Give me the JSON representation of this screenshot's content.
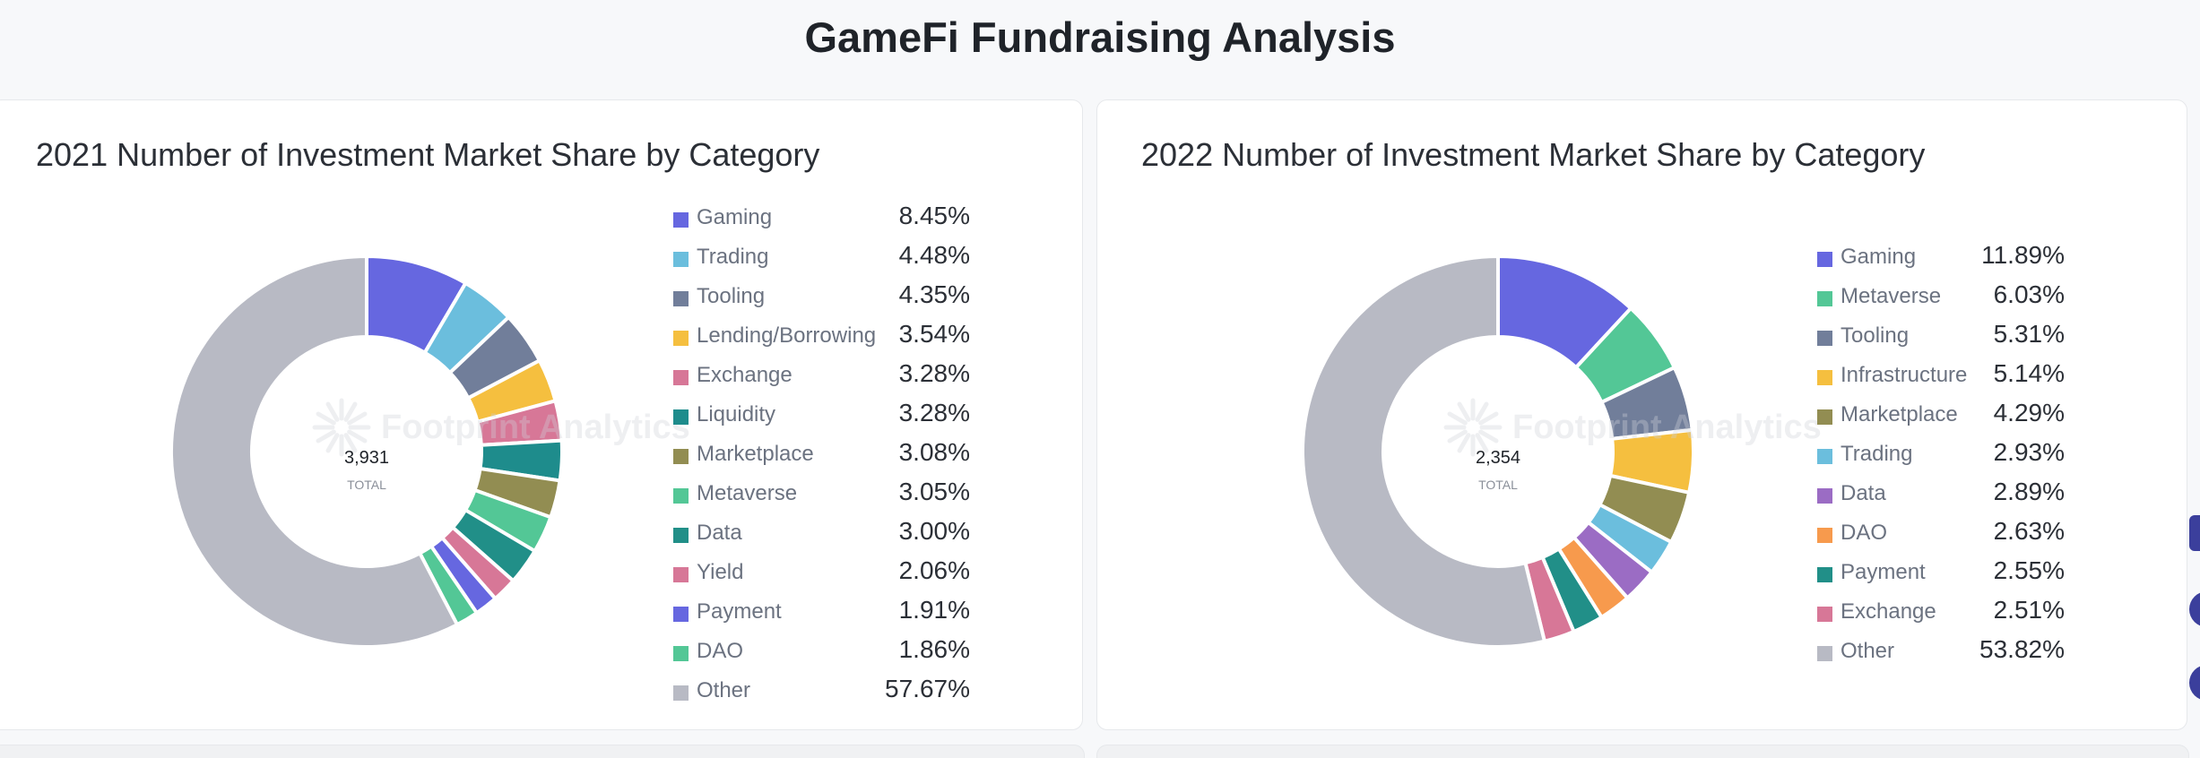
{
  "page": {
    "title": "GameFi Fundraising Analysis"
  },
  "chart_data": [
    {
      "type": "pie",
      "title": "2021 Number of Investment Market Share by Category",
      "center": {
        "value": "3,931",
        "label": "TOTAL"
      },
      "watermark": "Footprint Analytics",
      "legend_placement": "right",
      "slices": [
        {
          "label": "Gaming",
          "value": 8.45,
          "display": "8.45%",
          "color": "#6667e0"
        },
        {
          "label": "Trading",
          "value": 4.48,
          "display": "4.48%",
          "color": "#6bbedd"
        },
        {
          "label": "Tooling",
          "value": 4.35,
          "display": "4.35%",
          "color": "#717e9a"
        },
        {
          "label": "Lending/Borrowing",
          "value": 3.54,
          "display": "3.54%",
          "color": "#f5bf3f"
        },
        {
          "label": "Exchange",
          "value": 3.28,
          "display": "3.28%",
          "color": "#d77797"
        },
        {
          "label": "Liquidity",
          "value": 3.28,
          "display": "3.28%",
          "color": "#1e8c8c"
        },
        {
          "label": "Marketplace",
          "value": 3.08,
          "display": "3.08%",
          "color": "#928d52"
        },
        {
          "label": "Metaverse",
          "value": 3.05,
          "display": "3.05%",
          "color": "#53c796"
        },
        {
          "label": "Data",
          "value": 3.0,
          "display": "3.00%",
          "color": "#218f88"
        },
        {
          "label": "Yield",
          "value": 2.06,
          "display": "2.06%",
          "color": "#d77797"
        },
        {
          "label": "Payment",
          "value": 1.91,
          "display": "1.91%",
          "color": "#6667e0"
        },
        {
          "label": "DAO",
          "value": 1.86,
          "display": "1.86%",
          "color": "#53c796"
        },
        {
          "label": "Other",
          "value": 57.67,
          "display": "57.67%",
          "color": "#b8bac4"
        }
      ]
    },
    {
      "type": "pie",
      "title": "2022 Number of Investment Market Share by Category",
      "center": {
        "value": "2,354",
        "label": "TOTAL"
      },
      "watermark": "Footprint Analytics",
      "legend_placement": "right",
      "slices": [
        {
          "label": "Gaming",
          "value": 11.89,
          "display": "11.89%",
          "color": "#6667e0"
        },
        {
          "label": "Metaverse",
          "value": 6.03,
          "display": "6.03%",
          "color": "#53c796"
        },
        {
          "label": "Tooling",
          "value": 5.31,
          "display": "5.31%",
          "color": "#717e9a"
        },
        {
          "label": "Infrastructure",
          "value": 5.14,
          "display": "5.14%",
          "color": "#f5bf3f"
        },
        {
          "label": "Marketplace",
          "value": 4.29,
          "display": "4.29%",
          "color": "#928d52"
        },
        {
          "label": "Trading",
          "value": 2.93,
          "display": "2.93%",
          "color": "#6bbedd"
        },
        {
          "label": "Data",
          "value": 2.89,
          "display": "2.89%",
          "color": "#9b6cc4"
        },
        {
          "label": "DAO",
          "value": 2.63,
          "display": "2.63%",
          "color": "#f79a4d"
        },
        {
          "label": "Payment",
          "value": 2.55,
          "display": "2.55%",
          "color": "#218f88"
        },
        {
          "label": "Exchange",
          "value": 2.51,
          "display": "2.51%",
          "color": "#d77797"
        },
        {
          "label": "Other",
          "value": 53.82,
          "display": "53.82%",
          "color": "#b8bac4"
        }
      ]
    }
  ]
}
